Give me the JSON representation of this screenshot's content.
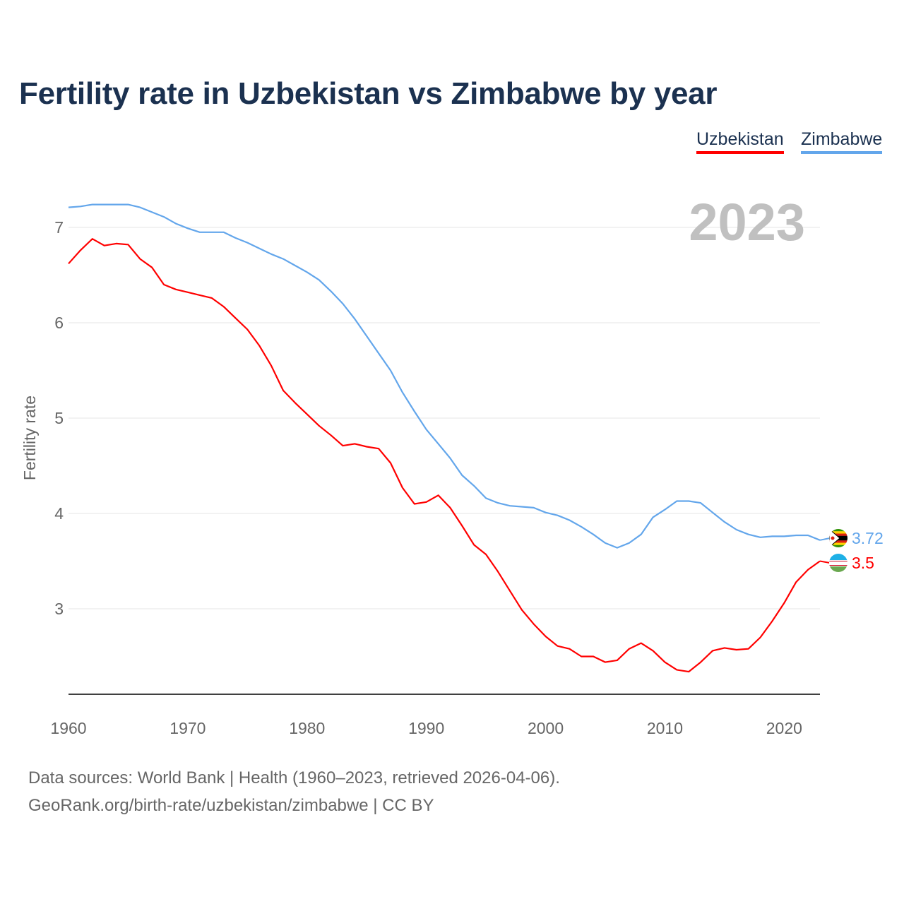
{
  "chart_data": {
    "type": "line",
    "title": "Fertility rate in Uzbekistan vs Zimbabwe by year",
    "xlabel": "",
    "ylabel": "Fertility rate",
    "year_label": "2023",
    "xlim": [
      1960,
      2023
    ],
    "ylim": [
      2.104,
      7.4
    ],
    "grid": true,
    "legend_position": "top-right",
    "x_ticks": [
      1960,
      1970,
      1980,
      1990,
      2000,
      2010,
      2020
    ],
    "y_ticks": [
      3,
      4,
      5,
      6,
      7
    ],
    "x": [
      1960,
      1961,
      1962,
      1963,
      1964,
      1965,
      1966,
      1967,
      1968,
      1969,
      1970,
      1971,
      1972,
      1973,
      1974,
      1975,
      1976,
      1977,
      1978,
      1979,
      1980,
      1981,
      1982,
      1983,
      1984,
      1985,
      1986,
      1987,
      1988,
      1989,
      1990,
      1991,
      1992,
      1993,
      1994,
      1995,
      1996,
      1997,
      1998,
      1999,
      2000,
      2001,
      2002,
      2003,
      2004,
      2005,
      2006,
      2007,
      2008,
      2009,
      2010,
      2011,
      2012,
      2013,
      2014,
      2015,
      2016,
      2017,
      2018,
      2019,
      2020,
      2021,
      2022,
      2023
    ],
    "series": [
      {
        "name": "Uzbekistan",
        "color": "#ff0000",
        "end_label": "3.5",
        "values": [
          6.62,
          6.76,
          6.88,
          6.81,
          6.83,
          6.82,
          6.67,
          6.58,
          6.4,
          6.35,
          6.32,
          6.29,
          6.26,
          6.17,
          6.05,
          5.93,
          5.76,
          5.55,
          5.29,
          5.16,
          5.04,
          4.92,
          4.82,
          4.71,
          4.73,
          4.7,
          4.68,
          4.53,
          4.27,
          4.1,
          4.12,
          4.19,
          4.06,
          3.87,
          3.67,
          3.57,
          3.39,
          3.19,
          2.99,
          2.84,
          2.71,
          2.61,
          2.58,
          2.5,
          2.5,
          2.44,
          2.46,
          2.58,
          2.64,
          2.56,
          2.44,
          2.36,
          2.34,
          2.44,
          2.56,
          2.59,
          2.57,
          2.58,
          2.7,
          2.87,
          3.06,
          3.28,
          3.41,
          3.5
        ]
      },
      {
        "name": "Zimbabwe",
        "color": "#63a6eb",
        "end_label": "3.72",
        "values": [
          7.21,
          7.22,
          7.24,
          7.24,
          7.24,
          7.24,
          7.21,
          7.16,
          7.11,
          7.04,
          6.99,
          6.95,
          6.95,
          6.95,
          6.89,
          6.84,
          6.78,
          6.72,
          6.67,
          6.6,
          6.53,
          6.45,
          6.33,
          6.2,
          6.04,
          5.86,
          5.68,
          5.5,
          5.27,
          5.07,
          4.88,
          4.73,
          4.58,
          4.4,
          4.29,
          4.16,
          4.11,
          4.08,
          4.07,
          4.06,
          4.01,
          3.98,
          3.93,
          3.86,
          3.78,
          3.69,
          3.64,
          3.69,
          3.78,
          3.96,
          4.04,
          4.13,
          4.13,
          4.11,
          4.01,
          3.91,
          3.83,
          3.78,
          3.75,
          3.76,
          3.76,
          3.77,
          3.77,
          3.72
        ]
      }
    ]
  },
  "footer": {
    "sources": "Data sources: World Bank | Health (1960–2023, retrieved 2026-04-06).",
    "url": "GeoRank.org/birth-rate/uzbekistan/zimbabwe | CC BY"
  }
}
